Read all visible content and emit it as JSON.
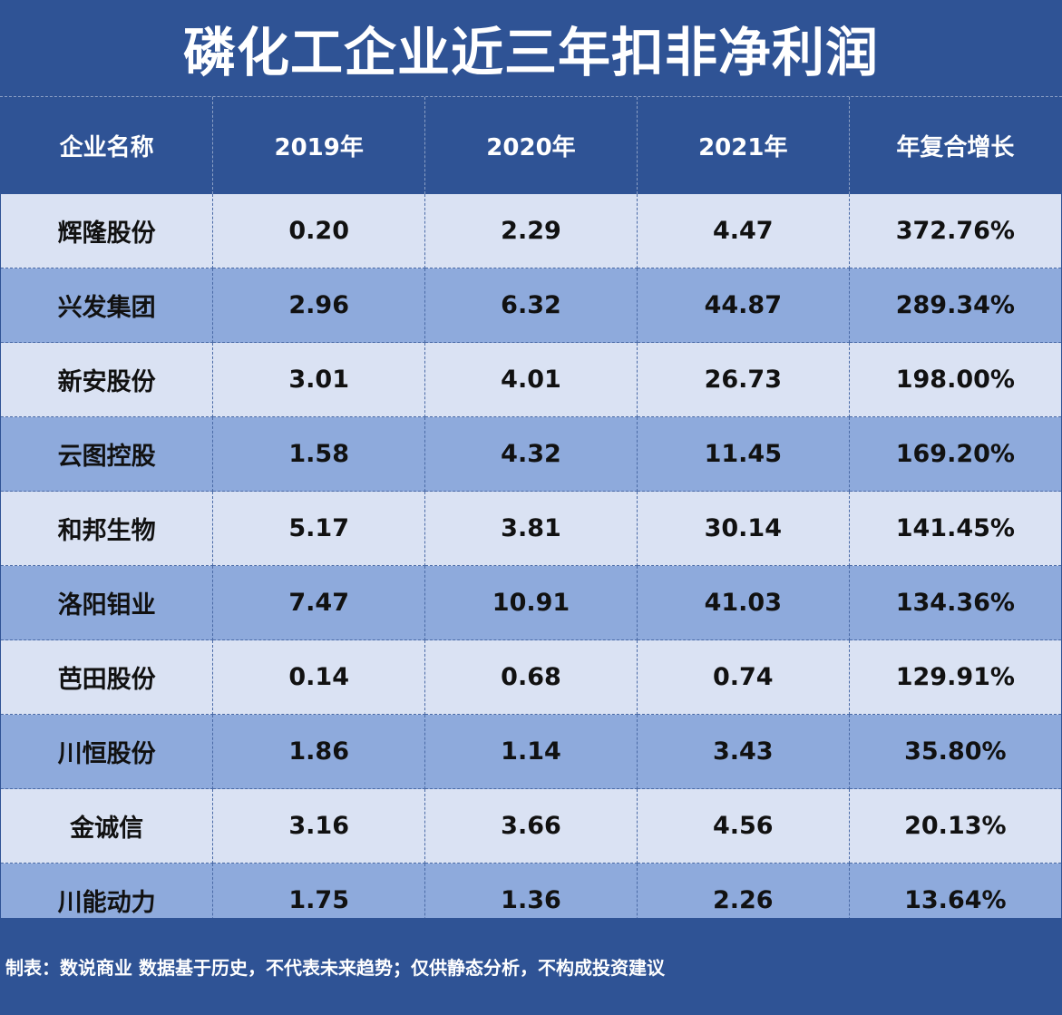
{
  "chart_data": {
    "type": "table",
    "title": "磷化工企业近三年扣非净利润",
    "columns": [
      "企业名称",
      "2019年",
      "2020年",
      "2021年",
      "年复合增长"
    ],
    "rows": [
      [
        "辉隆股份",
        "0.20",
        "2.29",
        "4.47",
        "372.76%"
      ],
      [
        "兴发集团",
        "2.96",
        "6.32",
        "44.87",
        "289.34%"
      ],
      [
        "新安股份",
        "3.01",
        "4.01",
        "26.73",
        "198.00%"
      ],
      [
        "云图控股",
        "1.58",
        "4.32",
        "11.45",
        "169.20%"
      ],
      [
        "和邦生物",
        "5.17",
        "3.81",
        "30.14",
        "141.45%"
      ],
      [
        "洛阳钼业",
        "7.47",
        "10.91",
        "41.03",
        "134.36%"
      ],
      [
        "芭田股份",
        "0.14",
        "0.68",
        "0.74",
        "129.91%"
      ],
      [
        "川恒股份",
        "1.86",
        "1.14",
        "3.43",
        "35.80%"
      ],
      [
        "金诚信",
        "3.16",
        "3.66",
        "4.56",
        "20.13%"
      ],
      [
        "川能动力",
        "1.75",
        "1.36",
        "2.26",
        "13.64%"
      ]
    ],
    "note": "制表：数说商业 数据基于历史，不代表未来趋势；仅供静态分析，不构成投资建议"
  },
  "colors": {
    "header_bg": "#2f5395",
    "row_light": "#dae2f3",
    "row_dark": "#8eaadc",
    "text_dark": "#111111",
    "text_light": "#ffffff"
  }
}
